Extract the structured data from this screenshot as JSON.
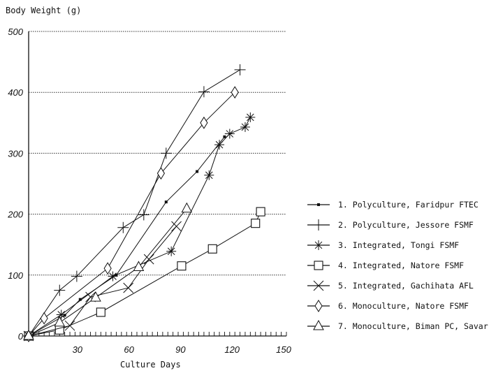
{
  "chart_data": {
    "type": "line",
    "title": "",
    "ylabel": "Body Weight (g)",
    "xlabel": "Culture Days",
    "xlim": [
      0,
      150
    ],
    "ylim": [
      0,
      500
    ],
    "xticks": [
      30,
      60,
      90,
      120,
      150
    ],
    "yticks": [
      0,
      100,
      200,
      300,
      400,
      500
    ],
    "grid": "horizontal dotted",
    "legend_position": "right",
    "series": [
      {
        "name": "1. Polyculture, Faridpur FTEC",
        "marker": "filled-square",
        "points": [
          [
            0,
            0
          ],
          [
            21,
            34
          ],
          [
            30,
            60
          ],
          [
            51,
            100
          ],
          [
            80,
            220
          ],
          [
            98,
            270
          ],
          [
            114,
            327
          ]
        ]
      },
      {
        "name": "2. Polyculture, Jessore FSMF",
        "marker": "plus",
        "points": [
          [
            0,
            0
          ],
          [
            18,
            75
          ],
          [
            28,
            98
          ],
          [
            55,
            178
          ],
          [
            67,
            199
          ],
          [
            80,
            300
          ],
          [
            102,
            401
          ],
          [
            123,
            437
          ]
        ]
      },
      {
        "name": "3. Integrated, Tongi FSMF",
        "marker": "asterisk",
        "points": [
          [
            0,
            0
          ],
          [
            19,
            35
          ],
          [
            49,
            98
          ],
          [
            83,
            139
          ],
          [
            105,
            264
          ],
          [
            111,
            314
          ],
          [
            117,
            332
          ],
          [
            126,
            343
          ],
          [
            129,
            359
          ]
        ]
      },
      {
        "name": "4. Integrated, Natore FSMF",
        "marker": "square",
        "points": [
          [
            0,
            0
          ],
          [
            18,
            10
          ],
          [
            42,
            39
          ],
          [
            89,
            115
          ],
          [
            107,
            143
          ],
          [
            132,
            185
          ],
          [
            135,
            204
          ]
        ]
      },
      {
        "name": "5. Integrated, Gachihata AFL",
        "marker": "x",
        "points": [
          [
            0,
            0
          ],
          [
            24,
            17
          ],
          [
            36,
            64
          ],
          [
            58,
            79
          ],
          [
            70,
            126
          ],
          [
            86,
            180
          ]
        ]
      },
      {
        "name": "6. Monoculture, Natore FSMF",
        "marker": "diamond",
        "points": [
          [
            0,
            0
          ],
          [
            9,
            29
          ],
          [
            46,
            111
          ],
          [
            77,
            267
          ],
          [
            102,
            350
          ],
          [
            120,
            400
          ]
        ]
      },
      {
        "name": "7. Monoculture, Biman PC, Savar",
        "marker": "triangle",
        "points": [
          [
            0,
            0
          ],
          [
            18,
            22
          ],
          [
            39,
            63
          ],
          [
            64,
            113
          ],
          [
            92,
            209
          ]
        ]
      }
    ]
  },
  "labels": {
    "ylabel": "Body Weight (g)",
    "xlabel": "Culture Days"
  }
}
